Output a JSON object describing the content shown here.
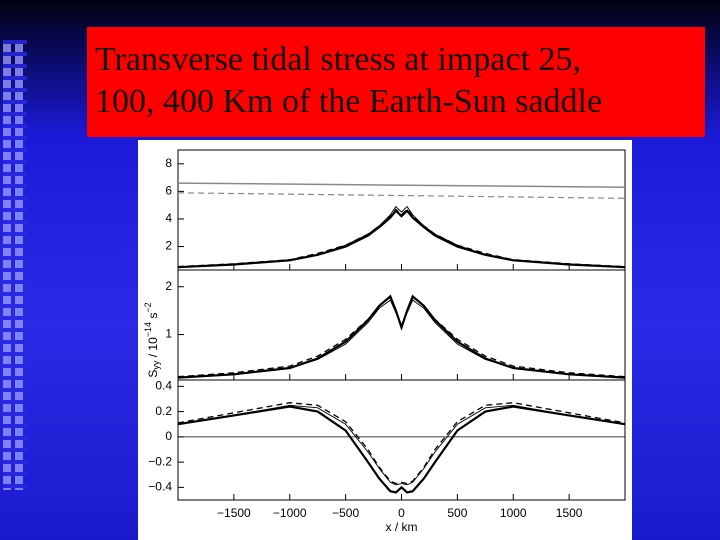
{
  "slide_title": [
    "Transverse tidal stress at impact 25,",
    "100, 400 Km of the Earth-Sun saddle"
  ],
  "y_label": {
    "main": "S",
    "sub": "yy",
    "mid": " / 10",
    "sup1": "−14",
    "unit": " s",
    "sup2": "−2"
  },
  "chart_data": [
    {
      "type": "line",
      "xlim": [
        -2000,
        2000
      ],
      "ylim": [
        0.3,
        9
      ],
      "yticks": [
        2,
        4,
        6,
        8
      ],
      "x": [
        -2000,
        -1500,
        -1000,
        -750,
        -500,
        -300,
        -200,
        -100,
        -50,
        0,
        50,
        100,
        200,
        300,
        500,
        750,
        1000,
        1500,
        2000
      ],
      "series": [
        {
          "color": "#000000",
          "width": 2.2,
          "dash": false,
          "values": [
            0.5,
            0.7,
            1.0,
            1.4,
            2.0,
            2.8,
            3.4,
            4.1,
            4.6,
            4.2,
            4.6,
            4.1,
            3.4,
            2.8,
            2.0,
            1.4,
            1.0,
            0.7,
            0.5
          ]
        },
        {
          "color": "#000000",
          "width": 0.9,
          "dash": false,
          "values": [
            0.5,
            0.7,
            1.0,
            1.4,
            2.1,
            2.9,
            3.5,
            4.3,
            4.9,
            4.5,
            4.9,
            4.3,
            3.5,
            2.9,
            2.1,
            1.4,
            1.0,
            0.7,
            0.5
          ]
        },
        {
          "color": "#000000",
          "width": 1.3,
          "dash": true,
          "values": [
            0.55,
            0.75,
            1.05,
            1.5,
            2.1,
            2.9,
            3.5,
            4.2,
            4.7,
            4.3,
            4.7,
            4.2,
            3.5,
            2.9,
            2.1,
            1.5,
            1.05,
            0.75,
            0.55
          ]
        },
        {
          "color": "#888888",
          "width": 1.5,
          "dash": false,
          "x": [
            -2000,
            2000
          ],
          "values": [
            6.6,
            6.3
          ]
        },
        {
          "color": "#888888",
          "width": 1.2,
          "dash": true,
          "x": [
            -2000,
            2000
          ],
          "values": [
            5.9,
            5.5
          ]
        }
      ]
    },
    {
      "type": "line",
      "xlim": [
        -2000,
        2000
      ],
      "ylim": [
        0.05,
        2.35
      ],
      "yticks": [
        1,
        2
      ],
      "x": [
        -2000,
        -1500,
        -1000,
        -750,
        -500,
        -300,
        -200,
        -100,
        -50,
        0,
        50,
        100,
        200,
        300,
        500,
        750,
        1000,
        1500,
        2000
      ],
      "series": [
        {
          "color": "#000000",
          "width": 2.2,
          "dash": false,
          "values": [
            0.1,
            0.17,
            0.3,
            0.5,
            0.85,
            1.3,
            1.6,
            1.8,
            1.5,
            1.15,
            1.5,
            1.8,
            1.6,
            1.3,
            0.85,
            0.5,
            0.3,
            0.17,
            0.1
          ]
        },
        {
          "color": "#000000",
          "width": 0.9,
          "dash": false,
          "values": [
            0.1,
            0.17,
            0.3,
            0.48,
            0.8,
            1.25,
            1.55,
            1.72,
            1.45,
            1.2,
            1.45,
            1.72,
            1.55,
            1.25,
            0.8,
            0.48,
            0.3,
            0.17,
            0.1
          ]
        },
        {
          "color": "#000000",
          "width": 1.3,
          "dash": true,
          "values": [
            0.12,
            0.2,
            0.34,
            0.55,
            0.9,
            1.32,
            1.6,
            1.78,
            1.5,
            1.15,
            1.5,
            1.78,
            1.6,
            1.32,
            0.9,
            0.55,
            0.34,
            0.2,
            0.12
          ]
        }
      ]
    },
    {
      "type": "line",
      "xlim": [
        -2000,
        2000
      ],
      "ylim": [
        -0.5,
        0.45
      ],
      "yticks": [
        {
          "value": -0.4,
          "label": "−0.4"
        },
        {
          "value": -0.2,
          "label": "−0.2"
        },
        0,
        0.2,
        0.4
      ],
      "ref_line": 0,
      "x_label": "x / km",
      "xticks": [
        {
          "value": -1500,
          "label": "−1500"
        },
        {
          "value": -1000,
          "label": "−1000"
        },
        {
          "value": -500,
          "label": "−500"
        },
        0,
        500,
        1000,
        1500
      ],
      "x": [
        -2000,
        -1500,
        -1000,
        -750,
        -500,
        -300,
        -200,
        -100,
        -50,
        0,
        50,
        100,
        200,
        300,
        500,
        750,
        1000,
        1500,
        2000
      ],
      "series": [
        {
          "color": "#000000",
          "width": 2.2,
          "dash": false,
          "values": [
            0.1,
            0.17,
            0.24,
            0.2,
            0.05,
            -0.2,
            -0.33,
            -0.43,
            -0.44,
            -0.4,
            -0.44,
            -0.43,
            -0.33,
            -0.2,
            0.05,
            0.2,
            0.24,
            0.17,
            0.1
          ]
        },
        {
          "color": "#000000",
          "width": 0.9,
          "dash": false,
          "values": [
            0.1,
            0.17,
            0.25,
            0.23,
            0.1,
            -0.12,
            -0.25,
            -0.36,
            -0.38,
            -0.37,
            -0.38,
            -0.36,
            -0.25,
            -0.12,
            0.1,
            0.23,
            0.25,
            0.17,
            0.1
          ]
        },
        {
          "color": "#000000",
          "width": 1.3,
          "dash": true,
          "values": [
            0.11,
            0.19,
            0.27,
            0.25,
            0.12,
            -0.1,
            -0.24,
            -0.35,
            -0.37,
            -0.36,
            -0.37,
            -0.35,
            -0.24,
            -0.1,
            0.12,
            0.25,
            0.27,
            0.19,
            0.11
          ]
        }
      ]
    }
  ]
}
